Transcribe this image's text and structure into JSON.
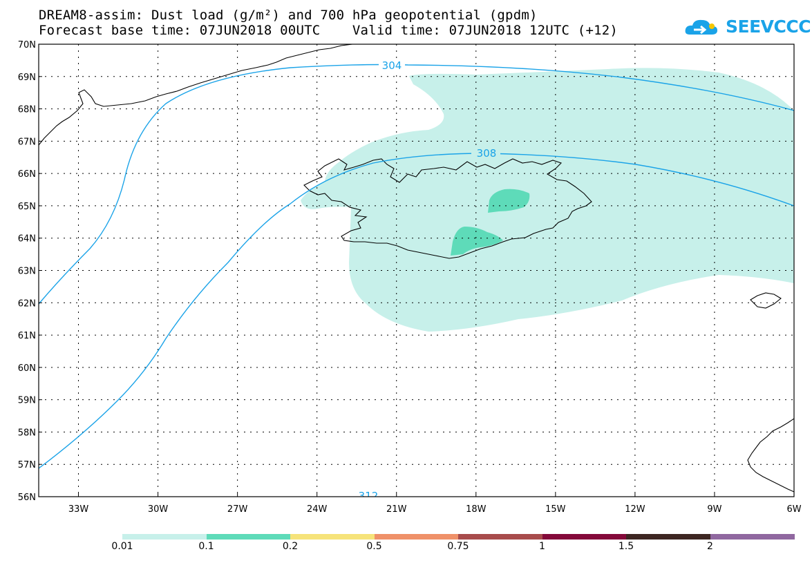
{
  "title": {
    "line1": "DREAM8-assim: Dust load (g/m²) and 700 hPa geopotential (gpdm)",
    "line2": "Forecast base time: 07JUN2018 00UTC    Valid time: 07JUN2018 12UTC (+12)"
  },
  "logo": {
    "text": "SEEVCCC",
    "icon": "cloud-logo-icon",
    "color": "#1aa3e8"
  },
  "map": {
    "lat_labels": [
      "70N",
      "69N",
      "68N",
      "67N",
      "66N",
      "65N",
      "64N",
      "63N",
      "62N",
      "61N",
      "60N",
      "59N",
      "58N",
      "57N",
      "56N"
    ],
    "lon_labels": [
      "33W",
      "30W",
      "27W",
      "24W",
      "21W",
      "18W",
      "15W",
      "12W",
      "9W",
      "6W"
    ],
    "lat_range": [
      56,
      70
    ],
    "lon_range": [
      -34.5,
      -6
    ],
    "grid": "dotted",
    "contours": [
      {
        "value": "304",
        "color": "#1aa3e8"
      },
      {
        "value": "308",
        "color": "#1aa3e8"
      },
      {
        "value": "312",
        "color": "#1aa3e8"
      }
    ]
  },
  "colorbar": {
    "colors": [
      "#c7f0ea",
      "#5edbb9",
      "#f6e37a",
      "#ef9169",
      "#a84c4c",
      "#84093a",
      "#3d2622",
      "#9068a0"
    ],
    "labels": [
      "0.01",
      "0.1",
      "0.2",
      "0.5",
      "0.75",
      "1",
      "1.5",
      "2"
    ]
  }
}
